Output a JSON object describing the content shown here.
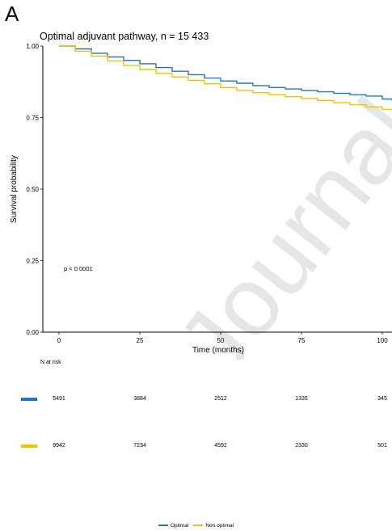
{
  "panel_letter": "A",
  "colors": {
    "optimal": "#1f77c0",
    "non_optimal": "#f2c100",
    "watermark": "#e6e6e6"
  },
  "watermark_text": "Journal",
  "chart_data": {
    "type": "line",
    "title": "Optimal adjuvant pathway, n = 15 433",
    "xlabel": "Time (months)",
    "ylabel": "Survival probability",
    "xlim": [
      -5,
      103
    ],
    "ylim": [
      0,
      1.0
    ],
    "x_ticks": [
      0,
      25,
      50,
      75,
      100
    ],
    "x_tick_labels": [
      "0",
      "25",
      "50",
      "75",
      "100"
    ],
    "y_ticks": [
      0,
      0.25,
      0.5,
      0.75,
      1.0
    ],
    "y_tick_labels": [
      "0.00",
      "0.25",
      "0.50",
      "0.75",
      "1.00"
    ],
    "grid": false,
    "annotation": "p < 0.0001",
    "series": [
      {
        "name": "Optimal",
        "color": "#1f77c0",
        "x": [
          0,
          5,
          10,
          15,
          20,
          25,
          30,
          35,
          40,
          45,
          50,
          55,
          60,
          65,
          70,
          75,
          80,
          85,
          90,
          95,
          100,
          103
        ],
        "y": [
          1.0,
          0.99,
          0.975,
          0.962,
          0.95,
          0.938,
          0.925,
          0.912,
          0.9,
          0.888,
          0.878,
          0.87,
          0.862,
          0.855,
          0.85,
          0.845,
          0.84,
          0.835,
          0.83,
          0.825,
          0.815,
          0.81
        ]
      },
      {
        "name": "Non optimal",
        "color": "#f2c100",
        "x": [
          0,
          5,
          10,
          15,
          20,
          25,
          30,
          35,
          40,
          45,
          50,
          55,
          60,
          65,
          70,
          75,
          80,
          85,
          90,
          95,
          100,
          103
        ],
        "y": [
          1.0,
          0.982,
          0.965,
          0.948,
          0.932,
          0.918,
          0.905,
          0.892,
          0.88,
          0.868,
          0.855,
          0.845,
          0.837,
          0.83,
          0.823,
          0.817,
          0.81,
          0.802,
          0.795,
          0.787,
          0.778,
          0.773
        ]
      }
    ],
    "risk_table": {
      "label": "N at risk",
      "times": [
        0,
        25,
        50,
        75,
        100
      ],
      "rows": [
        {
          "name": "Optimal",
          "values": [
            "5491",
            "3884",
            "2512",
            "1335",
            "345"
          ]
        },
        {
          "name": "Non optimal",
          "values": [
            "9942",
            "7234",
            "4592",
            "2330",
            "501"
          ]
        }
      ]
    },
    "legend": {
      "position": "bottom",
      "items": [
        "Optimal",
        "Non optimal"
      ]
    }
  }
}
